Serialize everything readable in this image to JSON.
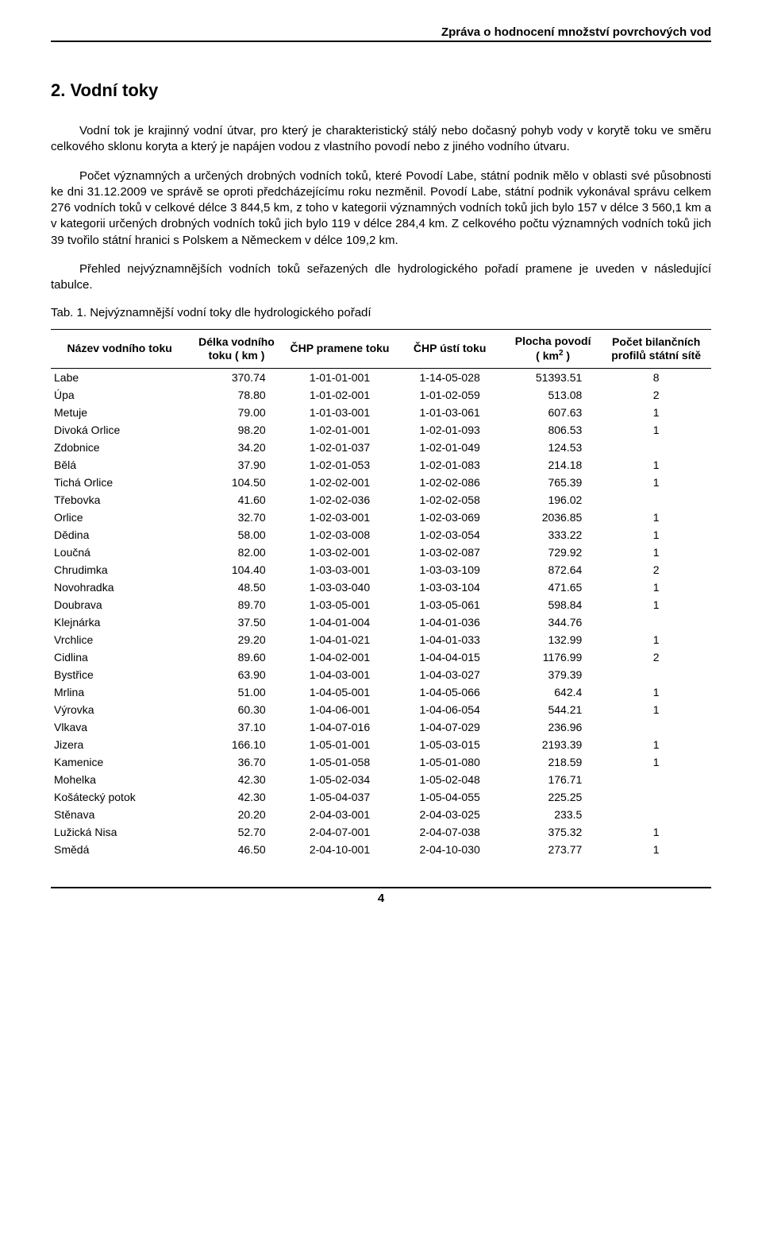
{
  "header": {
    "running_title": "Zpráva o hodnocení množství povrchových vod"
  },
  "section": {
    "heading": "2.  Vodní toky",
    "paragraphs": [
      "Vodní tok je krajinný vodní útvar, pro který je charakteristický stálý nebo dočasný pohyb vody v korytě toku ve směru celkového sklonu koryta a který je napájen vodou z vlastního povodí nebo z jiného vodního útvaru.",
      "Počet významných a určených drobných vodních toků, které Povodí Labe, státní podnik mělo v oblasti své působnosti ke dni 31.12.2009 ve správě se oproti předcházejícímu roku nezměnil. Povodí Labe, státní podnik vykonával správu celkem 276 vodních toků v celkové délce 3 844,5 km, z toho v kategorii významných vodních toků jich bylo 157 v délce 3 560,1 km a v kategorii určených drobných vodních toků jich bylo 119 v délce 284,4 km. Z celkového počtu významných vodních toků jich 39 tvořilo státní hranici s Polskem a Německem v délce 109,2 km.",
      "Přehled nejvýznamnějších vodních toků seřazených dle hydrologického pořadí pramene je uveden v následující tabulce."
    ],
    "table_caption": "Tab. 1.   Nejvýznamnější vodní toky dle hydrologického pořadí",
    "table": {
      "columns": [
        "Název vodního toku",
        "Délka vodního toku ( km )",
        "ČHP pramene toku",
        "ČHP ústí toku",
        "Plocha povodí ( km² )",
        "Počet bilančních profilů státní sítě"
      ],
      "rows": [
        [
          "Labe",
          "370.74",
          "1-01-01-001",
          "1-14-05-028",
          "51393.51",
          "8"
        ],
        [
          "Úpa",
          "78.80",
          "1-01-02-001",
          "1-01-02-059",
          "513.08",
          "2"
        ],
        [
          "Metuje",
          "79.00",
          "1-01-03-001",
          "1-01-03-061",
          "607.63",
          "1"
        ],
        [
          "Divoká Orlice",
          "98.20",
          "1-02-01-001",
          "1-02-01-093",
          "806.53",
          "1"
        ],
        [
          "Zdobnice",
          "34.20",
          "1-02-01-037",
          "1-02-01-049",
          "124.53",
          ""
        ],
        [
          "Bělá",
          "37.90",
          "1-02-01-053",
          "1-02-01-083",
          "214.18",
          "1"
        ],
        [
          "Tichá Orlice",
          "104.50",
          "1-02-02-001",
          "1-02-02-086",
          "765.39",
          "1"
        ],
        [
          "Třebovka",
          "41.60",
          "1-02-02-036",
          "1-02-02-058",
          "196.02",
          ""
        ],
        [
          "Orlice",
          "32.70",
          "1-02-03-001",
          "1-02-03-069",
          "2036.85",
          "1"
        ],
        [
          "Dědina",
          "58.00",
          "1-02-03-008",
          "1-02-03-054",
          "333.22",
          "1"
        ],
        [
          "Loučná",
          "82.00",
          "1-03-02-001",
          "1-03-02-087",
          "729.92",
          "1"
        ],
        [
          "Chrudimka",
          "104.40",
          "1-03-03-001",
          "1-03-03-109",
          "872.64",
          "2"
        ],
        [
          "Novohradka",
          "48.50",
          "1-03-03-040",
          "1-03-03-104",
          "471.65",
          "1"
        ],
        [
          "Doubrava",
          "89.70",
          "1-03-05-001",
          "1-03-05-061",
          "598.84",
          "1"
        ],
        [
          "Klejnárka",
          "37.50",
          "1-04-01-004",
          "1-04-01-036",
          "344.76",
          ""
        ],
        [
          "Vrchlice",
          "29.20",
          "1-04-01-021",
          "1-04-01-033",
          "132.99",
          "1"
        ],
        [
          "Cidlina",
          "89.60",
          "1-04-02-001",
          "1-04-04-015",
          "1176.99",
          "2"
        ],
        [
          "Bystřice",
          "63.90",
          "1-04-03-001",
          "1-04-03-027",
          "379.39",
          ""
        ],
        [
          "Mrlina",
          "51.00",
          "1-04-05-001",
          "1-04-05-066",
          "642.4",
          "1"
        ],
        [
          "Výrovka",
          "60.30",
          "1-04-06-001",
          "1-04-06-054",
          "544.21",
          "1"
        ],
        [
          "Vlkava",
          "37.10",
          "1-04-07-016",
          "1-04-07-029",
          "236.96",
          ""
        ],
        [
          "Jizera",
          "166.10",
          "1-05-01-001",
          "1-05-03-015",
          "2193.39",
          "1"
        ],
        [
          "Kamenice",
          "36.70",
          "1-05-01-058",
          "1-05-01-080",
          "218.59",
          "1"
        ],
        [
          "Mohelka",
          "42.30",
          "1-05-02-034",
          "1-05-02-048",
          "176.71",
          ""
        ],
        [
          "Košátecký potok",
          "42.30",
          "1-05-04-037",
          "1-05-04-055",
          "225.25",
          ""
        ],
        [
          "Stěnava",
          "20.20",
          "2-04-03-001",
          "2-04-03-025",
          "233.5",
          ""
        ],
        [
          "Lužická Nisa",
          "52.70",
          "2-04-07-001",
          "2-04-07-038",
          "375.32",
          "1"
        ],
        [
          "Smědá",
          "46.50",
          "2-04-10-001",
          "2-04-10-030",
          "273.77",
          "1"
        ]
      ]
    }
  },
  "footer": {
    "page_number": "4"
  }
}
